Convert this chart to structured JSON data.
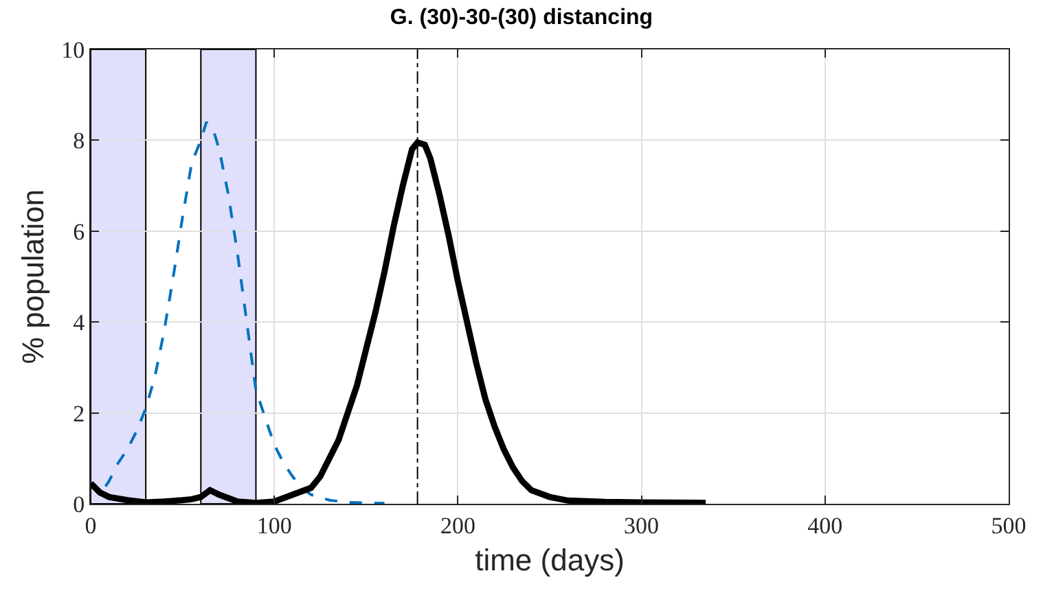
{
  "chart_data": {
    "type": "line",
    "title": "G. (30)-30-(30) distancing",
    "xlabel": "time (days)",
    "ylabel": "% population",
    "xlim": [
      0,
      500
    ],
    "xticks": [
      0,
      100,
      200,
      300,
      400,
      500
    ],
    "ylim": [
      0,
      10
    ],
    "yticks": [
      0,
      2,
      4,
      6,
      8,
      10
    ],
    "grid": true,
    "series": [
      {
        "color": "#0072bd",
        "line_style": "dashed",
        "x": [
          0,
          5,
          10,
          15,
          20,
          25,
          30,
          35,
          40,
          45,
          50,
          55,
          60,
          63,
          67,
          70,
          75,
          80,
          85,
          90,
          95,
          100,
          105,
          110,
          115,
          120,
          130,
          140,
          160
        ],
        "values": [
          0.45,
          0.2,
          0.5,
          0.9,
          1.2,
          1.6,
          2.1,
          2.8,
          3.8,
          5,
          6.3,
          7.5,
          8.0,
          8.4,
          8.2,
          7.8,
          6.8,
          5.5,
          4.0,
          2.5,
          1.9,
          1.3,
          0.9,
          0.6,
          0.35,
          0.2,
          0.08,
          0.03,
          0.01
        ]
      },
      {
        "color": "#000000",
        "line_style": "solid",
        "x": [
          0,
          5,
          10,
          20,
          30,
          40,
          50,
          55,
          60,
          65,
          70,
          80,
          90,
          100,
          110,
          120,
          125,
          130,
          135,
          140,
          145,
          150,
          155,
          160,
          165,
          170,
          175,
          178,
          182,
          185,
          190,
          195,
          200,
          205,
          210,
          215,
          220,
          225,
          230,
          235,
          240,
          250,
          260,
          280,
          300,
          335
        ],
        "values": [
          0.45,
          0.25,
          0.15,
          0.08,
          0.03,
          0.05,
          0.08,
          0.1,
          0.15,
          0.3,
          0.2,
          0.05,
          0.02,
          0.05,
          0.2,
          0.35,
          0.6,
          1.0,
          1.4,
          2.0,
          2.6,
          3.4,
          4.2,
          5.1,
          6.1,
          7.0,
          7.8,
          7.95,
          7.9,
          7.6,
          6.8,
          5.9,
          4.9,
          4.0,
          3.1,
          2.3,
          1.7,
          1.2,
          0.8,
          0.5,
          0.3,
          0.15,
          0.07,
          0.04,
          0.03,
          0.02
        ]
      }
    ],
    "bands": [
      {
        "axis": "x",
        "from": 0,
        "to": 30,
        "color": "#e0e0fc"
      },
      {
        "axis": "x",
        "from": 60,
        "to": 90,
        "color": "#e0e0fc"
      }
    ],
    "ref_lines": [
      {
        "axis": "x",
        "value": 178,
        "color": "#000000",
        "line_style": "dashdot"
      }
    ]
  }
}
